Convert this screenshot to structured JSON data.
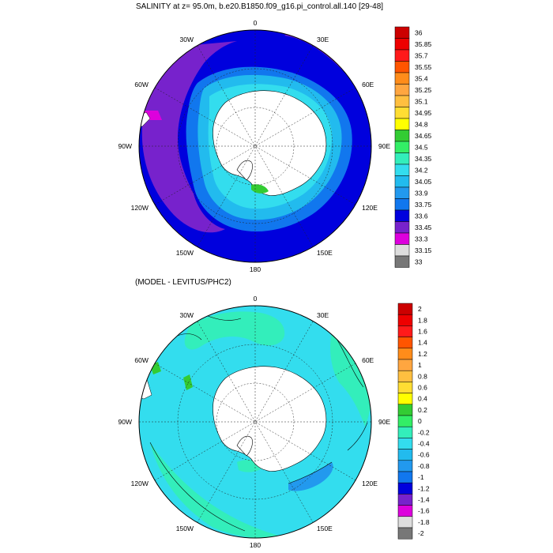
{
  "panels": [
    {
      "id": "salinity",
      "title": "SALINITY at z=  95.0m, b.e20.B1850.f09_g16.pi_control.all.140 [29-48]",
      "lon_labels": [
        "0",
        "30E",
        "60E",
        "90E",
        "120E",
        "150E",
        "180",
        "150W",
        "120W",
        "90W",
        "60W",
        "30W"
      ],
      "colorbar": {
        "labels": [
          "36",
          "35.85",
          "35.7",
          "35.55",
          "35.4",
          "35.25",
          "35.1",
          "34.95",
          "34.8",
          "34.65",
          "34.5",
          "34.35",
          "34.2",
          "34.05",
          "33.9",
          "33.75",
          "33.6",
          "33.45",
          "33.3",
          "33.15",
          "33"
        ],
        "colors": [
          "#cc0000",
          "#ee0000",
          "#ff1a1a",
          "#ff5500",
          "#ff8c1a",
          "#ffa640",
          "#ffbf40",
          "#ffdd33",
          "#ffff00",
          "#33cc33",
          "#33ee66",
          "#33eebb",
          "#33ddee",
          "#22bbee",
          "#2299ee",
          "#1177ee",
          "#0000dd",
          "#7722cc",
          "#dd00dd",
          "#dddddd",
          "#777777"
        ]
      }
    },
    {
      "id": "difference",
      "title": "(MODEL - LEVITUS/PHC2)",
      "lon_labels": [
        "0",
        "30E",
        "60E",
        "90E",
        "120E",
        "150E",
        "180",
        "150W",
        "120W",
        "90W",
        "60W",
        "30W"
      ],
      "colorbar": {
        "labels": [
          "2",
          "1.8",
          "1.6",
          "1.4",
          "1.2",
          "1",
          "0.8",
          "0.6",
          "0.4",
          "0.2",
          "0",
          "-0.2",
          "-0.4",
          "-0.6",
          "-0.8",
          "-1",
          "-1.2",
          "-1.4",
          "-1.6",
          "-1.8",
          "-2"
        ],
        "colors": [
          "#cc0000",
          "#ee0000",
          "#ff1a1a",
          "#ff5500",
          "#ff8c1a",
          "#ffa640",
          "#ffbf40",
          "#ffdd33",
          "#ffff00",
          "#33cc33",
          "#33ee66",
          "#33eebb",
          "#33ddee",
          "#22bbee",
          "#2299ee",
          "#1177ee",
          "#0000dd",
          "#7722cc",
          "#dd00dd",
          "#dddddd",
          "#777777"
        ]
      }
    }
  ]
}
